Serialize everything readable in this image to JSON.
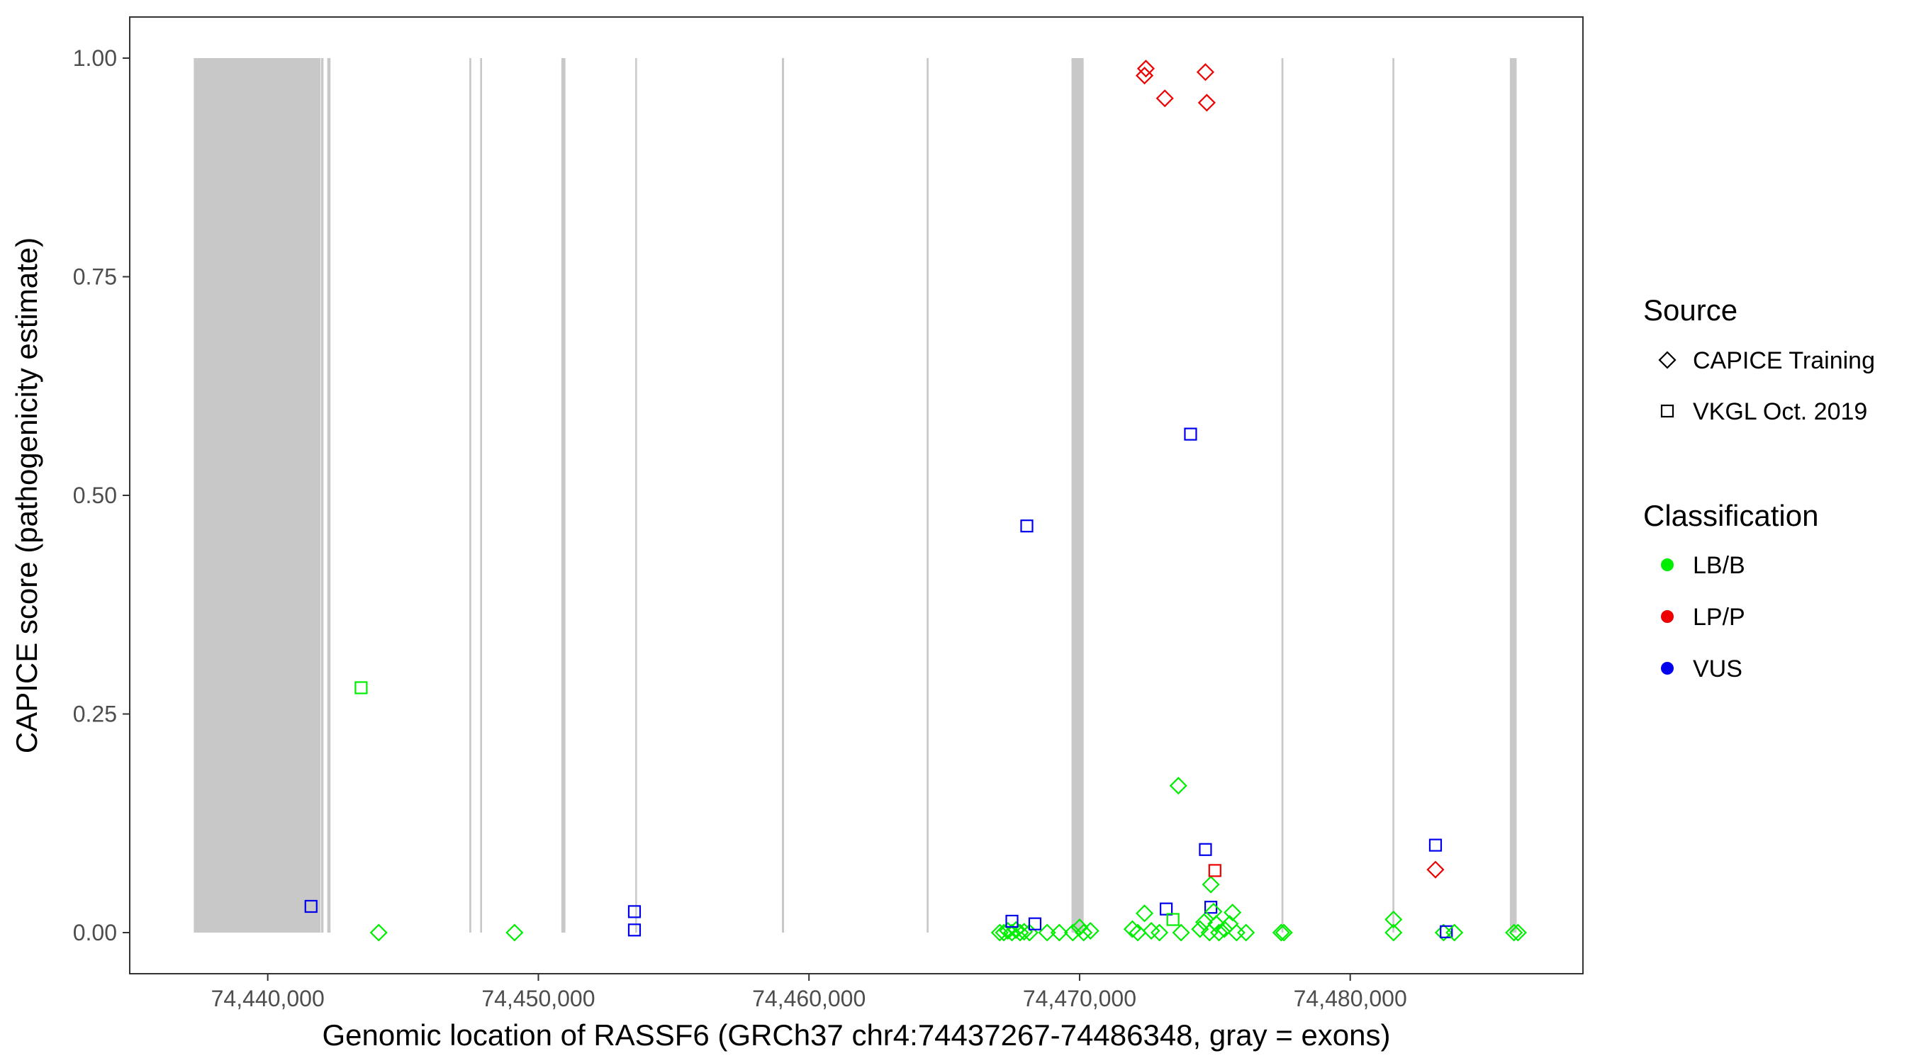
{
  "chart_data": {
    "type": "scatter",
    "xlabel": "Genomic location of RASSF6 (GRCh37 chr4:74437267-74486348, gray = exons)",
    "ylabel": "CAPICE score (pathogenicity estimate)",
    "xlim": [
      74434900,
      74488600
    ],
    "ylim": [
      -0.047,
      1.047
    ],
    "x_ticks": [
      74440000,
      74450000,
      74460000,
      74470000,
      74480000
    ],
    "x_tick_labels": [
      "74,440,000",
      "74,450,000",
      "74,460,000",
      "74,470,000",
      "74,480,000"
    ],
    "y_ticks": [
      0,
      0.25,
      0.5,
      0.75,
      1
    ],
    "y_tick_labels": [
      "0.00",
      "0.25",
      "0.50",
      "0.75",
      "1.00"
    ],
    "grid": false,
    "exon_color": "#c8c8c8",
    "exons": [
      [
        74437267,
        74441950
      ],
      [
        74441970,
        74442060
      ],
      [
        74442200,
        74442320
      ],
      [
        74447450,
        74447520
      ],
      [
        74447850,
        74447920
      ],
      [
        74450850,
        74451000
      ],
      [
        74453580,
        74453640
      ],
      [
        74459000,
        74459080
      ],
      [
        74464350,
        74464420
      ],
      [
        74469700,
        74470150
      ],
      [
        74477460,
        74477530
      ],
      [
        74481560,
        74481630
      ],
      [
        74485900,
        74486150
      ]
    ],
    "legend": {
      "placement": "right",
      "source": {
        "title": "Source",
        "entries": [
          {
            "label": "CAPICE Training",
            "shape": "diamond"
          },
          {
            "label": "VKGL Oct. 2019",
            "shape": "square"
          }
        ]
      },
      "classification": {
        "title": "Classification",
        "entries": [
          {
            "label": "LB/B",
            "color": "#00ee00"
          },
          {
            "label": "LP/P",
            "color": "#ee0000"
          },
          {
            "label": "VUS",
            "color": "#0000ee"
          }
        ]
      }
    },
    "points": [
      {
        "x": 74441600,
        "y": 0.03,
        "shape": "square",
        "cls": "VUS"
      },
      {
        "x": 74443450,
        "y": 0.28,
        "shape": "square",
        "cls": "LB/B"
      },
      {
        "x": 74444100,
        "y": 0.0,
        "shape": "diamond",
        "cls": "LB/B"
      },
      {
        "x": 74449120,
        "y": 0.0,
        "shape": "diamond",
        "cls": "LB/B"
      },
      {
        "x": 74453550,
        "y": 0.024,
        "shape": "square",
        "cls": "VUS"
      },
      {
        "x": 74453550,
        "y": 0.003,
        "shape": "square",
        "cls": "VUS"
      },
      {
        "x": 74467050,
        "y": 0.0,
        "shape": "diamond",
        "cls": "LB/B"
      },
      {
        "x": 74467200,
        "y": 0.0,
        "shape": "diamond",
        "cls": "LB/B"
      },
      {
        "x": 74467350,
        "y": 0.002,
        "shape": "diamond",
        "cls": "LB/B"
      },
      {
        "x": 74467500,
        "y": 0.0,
        "shape": "diamond",
        "cls": "LB/B"
      },
      {
        "x": 74467650,
        "y": 0.003,
        "shape": "diamond",
        "cls": "LB/B"
      },
      {
        "x": 74467800,
        "y": 0.0,
        "shape": "diamond",
        "cls": "LB/B"
      },
      {
        "x": 74467950,
        "y": 0.001,
        "shape": "diamond",
        "cls": "LB/B"
      },
      {
        "x": 74468150,
        "y": 0.0,
        "shape": "diamond",
        "cls": "LB/B"
      },
      {
        "x": 74467500,
        "y": 0.013,
        "shape": "square",
        "cls": "VUS"
      },
      {
        "x": 74468050,
        "y": 0.465,
        "shape": "square",
        "cls": "VUS"
      },
      {
        "x": 74468350,
        "y": 0.01,
        "shape": "square",
        "cls": "VUS"
      },
      {
        "x": 74468800,
        "y": 0.0,
        "shape": "diamond",
        "cls": "LB/B"
      },
      {
        "x": 74469250,
        "y": 0.0,
        "shape": "diamond",
        "cls": "LB/B"
      },
      {
        "x": 74469750,
        "y": 0.0,
        "shape": "diamond",
        "cls": "LB/B"
      },
      {
        "x": 74470000,
        "y": 0.006,
        "shape": "diamond",
        "cls": "LB/B"
      },
      {
        "x": 74470150,
        "y": 0.0,
        "shape": "diamond",
        "cls": "LB/B"
      },
      {
        "x": 74470400,
        "y": 0.002,
        "shape": "diamond",
        "cls": "LB/B"
      },
      {
        "x": 74471950,
        "y": 0.004,
        "shape": "diamond",
        "cls": "LB/B"
      },
      {
        "x": 74472150,
        "y": 0.0,
        "shape": "diamond",
        "cls": "LB/B"
      },
      {
        "x": 74472400,
        "y": 0.022,
        "shape": "diamond",
        "cls": "LB/B"
      },
      {
        "x": 74472450,
        "y": 0.988,
        "shape": "diamond",
        "cls": "LP/P"
      },
      {
        "x": 74472400,
        "y": 0.98,
        "shape": "diamond",
        "cls": "LP/P"
      },
      {
        "x": 74472650,
        "y": 0.002,
        "shape": "diamond",
        "cls": "LB/B"
      },
      {
        "x": 74472950,
        "y": 0.0,
        "shape": "diamond",
        "cls": "LB/B"
      },
      {
        "x": 74473150,
        "y": 0.954,
        "shape": "diamond",
        "cls": "LP/P"
      },
      {
        "x": 74473200,
        "y": 0.027,
        "shape": "square",
        "cls": "VUS"
      },
      {
        "x": 74473450,
        "y": 0.015,
        "shape": "square",
        "cls": "LB/B"
      },
      {
        "x": 74473650,
        "y": 0.168,
        "shape": "diamond",
        "cls": "LB/B"
      },
      {
        "x": 74473750,
        "y": 0.0,
        "shape": "diamond",
        "cls": "LB/B"
      },
      {
        "x": 74474100,
        "y": 0.57,
        "shape": "square",
        "cls": "VUS"
      },
      {
        "x": 74474450,
        "y": 0.004,
        "shape": "diamond",
        "cls": "LB/B"
      },
      {
        "x": 74474600,
        "y": 0.012,
        "shape": "diamond",
        "cls": "LB/B"
      },
      {
        "x": 74474650,
        "y": 0.984,
        "shape": "diamond",
        "cls": "LP/P"
      },
      {
        "x": 74474700,
        "y": 0.949,
        "shape": "diamond",
        "cls": "LP/P"
      },
      {
        "x": 74474650,
        "y": 0.095,
        "shape": "square",
        "cls": "VUS"
      },
      {
        "x": 74474800,
        "y": 0.0,
        "shape": "diamond",
        "cls": "LB/B"
      },
      {
        "x": 74474850,
        "y": 0.055,
        "shape": "diamond",
        "cls": "LB/B"
      },
      {
        "x": 74474850,
        "y": 0.029,
        "shape": "square",
        "cls": "VUS"
      },
      {
        "x": 74474950,
        "y": 0.024,
        "shape": "diamond",
        "cls": "LB/B"
      },
      {
        "x": 74475000,
        "y": 0.071,
        "shape": "square",
        "cls": "LP/P"
      },
      {
        "x": 74475050,
        "y": 0.01,
        "shape": "diamond",
        "cls": "LB/B"
      },
      {
        "x": 74475150,
        "y": 0.0,
        "shape": "diamond",
        "cls": "LB/B"
      },
      {
        "x": 74475350,
        "y": 0.004,
        "shape": "diamond",
        "cls": "LB/B"
      },
      {
        "x": 74475550,
        "y": 0.01,
        "shape": "diamond",
        "cls": "LB/B"
      },
      {
        "x": 74475650,
        "y": 0.023,
        "shape": "diamond",
        "cls": "LB/B"
      },
      {
        "x": 74475800,
        "y": 0.0,
        "shape": "diamond",
        "cls": "LB/B"
      },
      {
        "x": 74476150,
        "y": 0.0,
        "shape": "diamond",
        "cls": "LB/B"
      },
      {
        "x": 74477450,
        "y": 0.0,
        "shape": "diamond",
        "cls": "LB/B"
      },
      {
        "x": 74477550,
        "y": 0.0,
        "shape": "diamond",
        "cls": "LB/B"
      },
      {
        "x": 74481600,
        "y": 0.015,
        "shape": "diamond",
        "cls": "LB/B"
      },
      {
        "x": 74481600,
        "y": 0.0,
        "shape": "diamond",
        "cls": "LB/B"
      },
      {
        "x": 74483150,
        "y": 0.072,
        "shape": "diamond",
        "cls": "LP/P"
      },
      {
        "x": 74483150,
        "y": 0.1,
        "shape": "square",
        "cls": "VUS"
      },
      {
        "x": 74483450,
        "y": 0.0,
        "shape": "diamond",
        "cls": "LB/B"
      },
      {
        "x": 74483550,
        "y": 0.001,
        "shape": "square",
        "cls": "VUS"
      },
      {
        "x": 74483850,
        "y": 0.0,
        "shape": "diamond",
        "cls": "LB/B"
      },
      {
        "x": 74486050,
        "y": 0.0,
        "shape": "diamond",
        "cls": "LB/B"
      },
      {
        "x": 74486200,
        "y": 0.0,
        "shape": "diamond",
        "cls": "LB/B"
      }
    ]
  }
}
